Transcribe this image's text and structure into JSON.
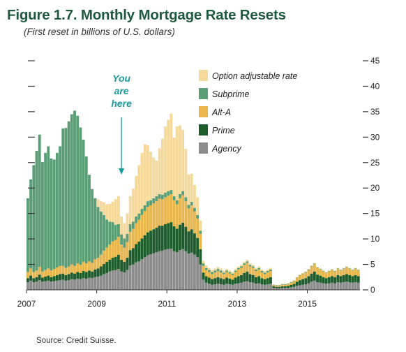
{
  "header": {
    "title": "Figure 1.7. Monthly Mortgage Rate Resets",
    "subtitle": "(First reset in billions of U.S. dollars)"
  },
  "footer": {
    "source": "Source: Credit Suisse."
  },
  "chart_data": {
    "type": "bar",
    "stacked": true,
    "title": "Figure 1.7. Monthly Mortgage Rate Resets",
    "subtitle": "(First reset in billions of U.S. dollars)",
    "xlabel": "",
    "ylabel": "",
    "ylim": [
      0,
      45
    ],
    "yticks": [
      0,
      5,
      10,
      15,
      20,
      25,
      30,
      35,
      40,
      45
    ],
    "xticks": [
      "2007",
      "2009",
      "2011",
      "2013",
      "2015"
    ],
    "xlim": [
      "2007-01",
      "2016-06"
    ],
    "grid": false,
    "legend_position": "top-right",
    "annotation": {
      "lines": [
        "You",
        "are",
        "here"
      ],
      "points_to": "2009-09",
      "color": "#1a9a9a"
    },
    "categories": [
      "2007-01",
      "2007-02",
      "2007-03",
      "2007-04",
      "2007-05",
      "2007-06",
      "2007-07",
      "2007-08",
      "2007-09",
      "2007-10",
      "2007-11",
      "2007-12",
      "2008-01",
      "2008-02",
      "2008-03",
      "2008-04",
      "2008-05",
      "2008-06",
      "2008-07",
      "2008-08",
      "2008-09",
      "2008-10",
      "2008-11",
      "2008-12",
      "2009-01",
      "2009-02",
      "2009-03",
      "2009-04",
      "2009-05",
      "2009-06",
      "2009-07",
      "2009-08",
      "2009-09",
      "2009-10",
      "2009-11",
      "2009-12",
      "2010-01",
      "2010-02",
      "2010-03",
      "2010-04",
      "2010-05",
      "2010-06",
      "2010-07",
      "2010-08",
      "2010-09",
      "2010-10",
      "2010-11",
      "2010-12",
      "2011-01",
      "2011-02",
      "2011-03",
      "2011-04",
      "2011-05",
      "2011-06",
      "2011-07",
      "2011-08",
      "2011-09",
      "2011-10",
      "2011-11",
      "2011-12",
      "2012-01",
      "2012-02",
      "2012-03",
      "2012-04",
      "2012-05",
      "2012-06",
      "2012-07",
      "2012-08",
      "2012-09",
      "2012-10",
      "2012-11",
      "2012-12",
      "2013-01",
      "2013-02",
      "2013-03",
      "2013-04",
      "2013-05",
      "2013-06",
      "2013-07",
      "2013-08",
      "2013-09",
      "2013-10",
      "2013-11",
      "2013-12",
      "2014-01",
      "2014-02",
      "2014-03",
      "2014-04",
      "2014-05",
      "2014-06",
      "2014-07",
      "2014-08",
      "2014-09",
      "2014-10",
      "2014-11",
      "2014-12",
      "2015-01",
      "2015-02",
      "2015-03",
      "2015-04",
      "2015-05",
      "2015-06",
      "2015-07",
      "2015-08",
      "2015-09",
      "2015-10",
      "2015-11",
      "2015-12",
      "2016-01",
      "2016-02",
      "2016-03",
      "2016-04",
      "2016-05",
      "2016-06"
    ],
    "series": [
      {
        "name": "Agency",
        "color": "#8c8c8c",
        "values": [
          1.5,
          1.8,
          1.5,
          1.6,
          1.9,
          1.6,
          1.7,
          1.8,
          1.6,
          1.7,
          1.8,
          1.9,
          2.0,
          1.8,
          1.9,
          2.1,
          2.0,
          2.2,
          2.1,
          2.3,
          2.2,
          2.4,
          2.3,
          2.5,
          2.6,
          2.8,
          3.1,
          3.3,
          3.6,
          3.8,
          3.9,
          4.1,
          3.6,
          3.4,
          3.9,
          4.8,
          5.0,
          5.4,
          5.6,
          6.0,
          6.4,
          6.8,
          7.0,
          7.2,
          7.4,
          7.6,
          7.7,
          7.9,
          8.0,
          8.1,
          7.6,
          7.4,
          7.8,
          8.0,
          7.6,
          7.1,
          7.3,
          6.9,
          6.4,
          5.0,
          2.0,
          1.4,
          1.2,
          1.0,
          1.1,
          1.2,
          1.1,
          1.0,
          1.2,
          1.1,
          1.0,
          1.2,
          1.3,
          1.4,
          1.6,
          1.7,
          1.5,
          1.4,
          1.2,
          1.3,
          1.1,
          1.0,
          1.1,
          1.2,
          0.4,
          0.3,
          0.3,
          0.4,
          0.4,
          0.4,
          0.5,
          0.6,
          0.8,
          0.9,
          1.0,
          1.1,
          1.3,
          1.6,
          1.8,
          1.5,
          1.4,
          1.3,
          1.2,
          1.3,
          1.4,
          1.3,
          1.5,
          1.4,
          1.5,
          1.6,
          1.5,
          1.4,
          1.5,
          1.4
        ]
      },
      {
        "name": "Prime",
        "color": "#1d5c2b",
        "values": [
          0.8,
          1.0,
          0.8,
          0.9,
          1.1,
          0.8,
          0.9,
          1.0,
          0.9,
          1.0,
          1.1,
          1.2,
          1.2,
          1.1,
          1.2,
          1.3,
          1.2,
          1.3,
          1.2,
          1.4,
          1.3,
          1.4,
          1.3,
          1.5,
          1.6,
          1.8,
          2.0,
          2.2,
          2.3,
          2.5,
          2.6,
          2.8,
          2.3,
          2.1,
          2.4,
          3.0,
          3.2,
          3.6,
          3.9,
          4.1,
          4.3,
          4.5,
          4.6,
          4.7,
          4.8,
          5.0,
          4.9,
          5.0,
          5.1,
          5.2,
          4.9,
          4.6,
          5.0,
          5.2,
          4.8,
          4.4,
          4.6,
          4.2,
          3.8,
          3.0,
          1.4,
          1.3,
          1.2,
          1.1,
          1.2,
          1.3,
          1.2,
          1.1,
          1.2,
          1.1,
          1.0,
          1.2,
          1.4,
          1.5,
          1.7,
          1.9,
          1.6,
          1.5,
          1.3,
          1.4,
          1.2,
          1.1,
          1.2,
          1.3,
          0.3,
          0.3,
          0.3,
          0.3,
          0.3,
          0.4,
          0.5,
          0.6,
          0.8,
          1.0,
          1.1,
          1.2,
          1.4,
          1.6,
          1.8,
          1.5,
          1.4,
          1.2,
          1.1,
          1.2,
          1.3,
          1.2,
          1.4,
          1.3,
          1.4,
          1.5,
          1.4,
          1.3,
          1.4,
          1.3
        ]
      },
      {
        "name": "Alt-A",
        "color": "#e9b64c",
        "values": [
          1.2,
          1.4,
          1.2,
          1.3,
          1.5,
          1.2,
          1.3,
          1.4,
          1.3,
          1.4,
          1.5,
          1.6,
          1.5,
          1.4,
          1.5,
          1.6,
          1.5,
          1.7,
          1.6,
          1.8,
          1.7,
          1.8,
          1.7,
          2.0,
          2.1,
          2.3,
          2.6,
          2.8,
          3.0,
          3.2,
          3.3,
          3.5,
          3.0,
          2.8,
          3.1,
          3.6,
          3.8,
          4.1,
          4.3,
          4.6,
          4.8,
          5.0,
          5.0,
          5.1,
          5.2,
          5.3,
          5.2,
          5.3,
          5.4,
          5.5,
          5.1,
          4.8,
          5.2,
          5.4,
          5.0,
          4.5,
          4.7,
          4.3,
          3.8,
          3.0,
          1.3,
          1.2,
          1.1,
          1.0,
          1.1,
          1.2,
          1.1,
          1.0,
          1.1,
          1.0,
          0.9,
          1.1,
          1.3,
          1.4,
          1.6,
          1.7,
          1.5,
          1.4,
          1.2,
          1.3,
          1.1,
          1.0,
          1.1,
          1.2,
          0.2,
          0.2,
          0.2,
          0.3,
          0.3,
          0.3,
          0.4,
          0.5,
          0.7,
          0.9,
          1.0,
          1.1,
          1.2,
          1.4,
          1.5,
          1.3,
          1.2,
          1.1,
          1.0,
          1.1,
          1.2,
          1.1,
          1.2,
          1.1,
          1.2,
          1.3,
          1.2,
          1.1,
          1.2,
          1.1
        ]
      },
      {
        "name": "Subprime",
        "color": "#5a9e76",
        "values": [
          14.5,
          17.5,
          21.0,
          23.5,
          26.0,
          21.5,
          23.0,
          24.0,
          22.0,
          21.5,
          22.5,
          23.5,
          27.0,
          27.5,
          28.5,
          29.5,
          30.5,
          29.0,
          27.0,
          24.0,
          21.0,
          17.0,
          14.5,
          12.0,
          10.0,
          8.5,
          7.0,
          5.5,
          4.5,
          3.8,
          3.0,
          2.5,
          2.0,
          1.8,
          1.6,
          1.5,
          1.4,
          1.3,
          1.2,
          1.2,
          1.1,
          1.1,
          1.0,
          1.0,
          1.0,
          0.9,
          0.9,
          0.9,
          0.9,
          0.8,
          0.8,
          0.8,
          0.8,
          0.8,
          0.8,
          0.7,
          0.7,
          0.7,
          0.7,
          0.6,
          0.5,
          0.4,
          0.4,
          0.4,
          0.4,
          0.4,
          0.4,
          0.3,
          0.3,
          0.3,
          0.3,
          0.3,
          0.3,
          0.3,
          0.3,
          0.3,
          0.3,
          0.3,
          0.3,
          0.3,
          0.3,
          0.3,
          0.3,
          0.3,
          0.1,
          0.1,
          0.1,
          0.1,
          0.1,
          0.1,
          0.1,
          0.1,
          0.1,
          0.1,
          0.1,
          0.1,
          0.1,
          0.1,
          0.1,
          0.1,
          0.1,
          0.1,
          0.1,
          0.1,
          0.1,
          0.1,
          0.1,
          0.1,
          0.1,
          0.1,
          0.1,
          0.1,
          0.1,
          0.1
        ]
      },
      {
        "name": "Option adjustable rate",
        "color": "#f5d99b",
        "values": [
          0,
          0,
          0,
          0,
          0,
          0,
          0,
          0,
          0,
          0,
          0,
          0,
          0,
          0,
          0,
          0,
          0,
          0,
          0,
          0,
          0,
          0,
          0,
          0,
          1.5,
          2.0,
          2.5,
          3.0,
          3.5,
          4.0,
          5.0,
          5.5,
          3.5,
          3.0,
          4.0,
          5.5,
          6.5,
          8.0,
          9.5,
          11.0,
          12.0,
          11.0,
          9.5,
          8.0,
          7.0,
          9.0,
          11.0,
          13.0,
          14.0,
          15.0,
          11.5,
          14.5,
          13.5,
          12.0,
          9.5,
          6.0,
          5.5,
          4.5,
          3.5,
          2.0,
          0.5,
          0.5,
          0.4,
          0.4,
          0.4,
          0.4,
          0.4,
          0.4,
          0.3,
          0.3,
          0.3,
          0.3,
          0.3,
          0.3,
          0.3,
          0.3,
          0.3,
          0.3,
          0.3,
          0.3,
          0.3,
          0.3,
          0.3,
          0.3,
          0.1,
          0.1,
          0.1,
          0.1,
          0.1,
          0.1,
          0.1,
          0.1,
          0.1,
          0.1,
          0.1,
          0.1,
          0.1,
          0.1,
          0.1,
          0.1,
          0.1,
          0.1,
          0.1,
          0.1,
          0.1,
          0.1,
          0.1,
          0.1,
          0.1,
          0.1,
          0.1,
          0.1,
          0.1,
          0.1
        ]
      }
    ]
  }
}
